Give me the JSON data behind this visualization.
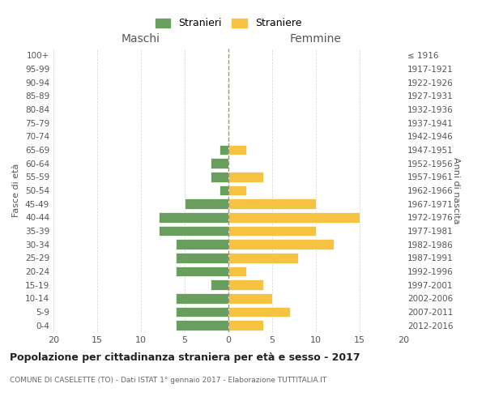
{
  "age_groups": [
    "0-4",
    "5-9",
    "10-14",
    "15-19",
    "20-24",
    "25-29",
    "30-34",
    "35-39",
    "40-44",
    "45-49",
    "50-54",
    "55-59",
    "60-64",
    "65-69",
    "70-74",
    "75-79",
    "80-84",
    "85-89",
    "90-94",
    "95-99",
    "100+"
  ],
  "birth_years": [
    "2012-2016",
    "2007-2011",
    "2002-2006",
    "1997-2001",
    "1992-1996",
    "1987-1991",
    "1982-1986",
    "1977-1981",
    "1972-1976",
    "1967-1971",
    "1962-1966",
    "1957-1961",
    "1952-1956",
    "1947-1951",
    "1942-1946",
    "1937-1941",
    "1932-1936",
    "1927-1931",
    "1922-1926",
    "1917-1921",
    "≤ 1916"
  ],
  "maschi": [
    6,
    6,
    6,
    2,
    6,
    6,
    6,
    8,
    8,
    5,
    1,
    2,
    2,
    1,
    0,
    0,
    0,
    0,
    0,
    0,
    0
  ],
  "femmine": [
    4,
    7,
    5,
    4,
    2,
    8,
    12,
    10,
    15,
    10,
    2,
    4,
    0,
    2,
    0,
    0,
    0,
    0,
    0,
    0,
    0
  ],
  "color_maschi": "#6a9e5f",
  "color_femmine": "#f5c242",
  "title": "Popolazione per cittadinanza straniera per età e sesso - 2017",
  "subtitle": "COMUNE DI CASELETTE (TO) - Dati ISTAT 1° gennaio 2017 - Elaborazione TUTTITALIA.IT",
  "xlabel_left": "Maschi",
  "xlabel_right": "Femmine",
  "ylabel_left": "Fasce di età",
  "ylabel_right": "Anni di nascita",
  "xlim": 20,
  "legend_stranieri": "Stranieri",
  "legend_straniere": "Straniere",
  "bg_color": "#ffffff",
  "grid_color": "#cccccc"
}
